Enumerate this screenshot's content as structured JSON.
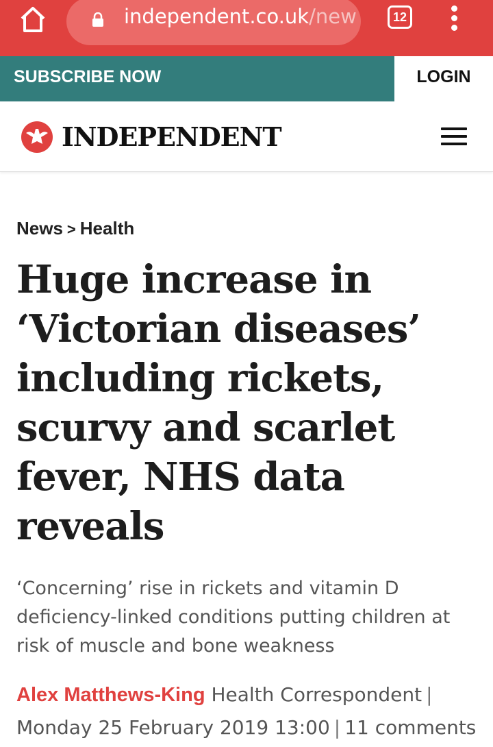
{
  "browser": {
    "url_domain": "independent.co.uk",
    "url_path": "/new",
    "tab_count": "12"
  },
  "topbar": {
    "subscribe_label": "SUBSCRIBE NOW",
    "login_label": "LOGIN"
  },
  "masthead": {
    "logo_text": "INDEPENDENT"
  },
  "article": {
    "breadcrumb": {
      "section": "News",
      "separator": ">",
      "subsection": "Health"
    },
    "headline": "Huge increase in ‘Victorian diseases’ including rickets, scurvy and scarlet fever, NHS data reveals",
    "standfirst": "‘Concerning’ rise in rickets and vitamin D deficiency-linked conditions putting children at risk of muscle and bone weakness",
    "author": "Alex Matthews-King",
    "author_role": "Health Correspondent",
    "date": "Monday 25 February 2019 13:00",
    "comments": "11 comments"
  },
  "colors": {
    "browser_bar": "#e0413f",
    "subscribe_bg": "#337d7c",
    "author": "#e0413f"
  },
  "icons": [
    "home-icon",
    "lock-icon",
    "tabs-icon",
    "more-vert-icon",
    "eagle-logo-icon",
    "menu-icon"
  ]
}
